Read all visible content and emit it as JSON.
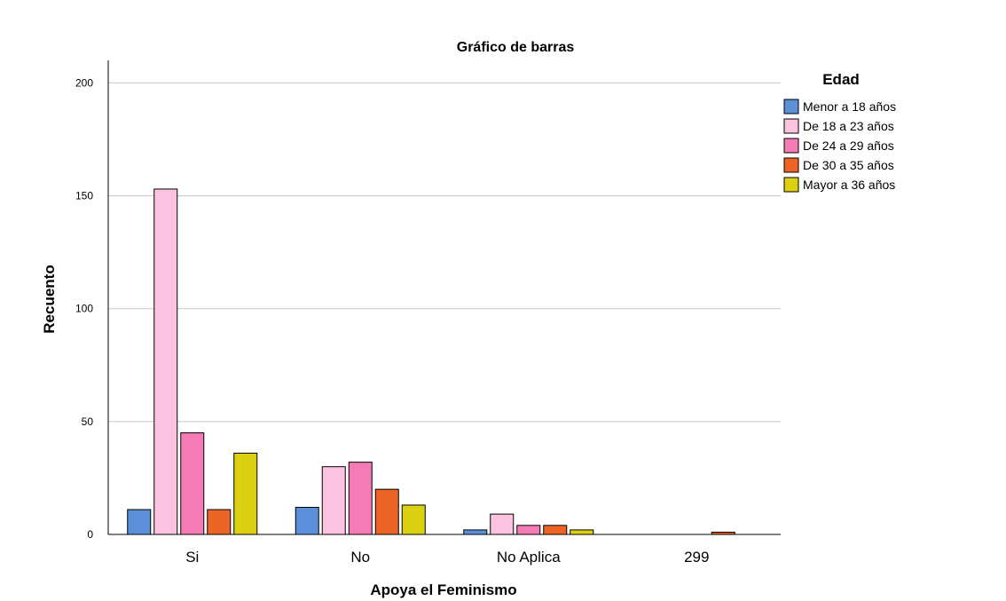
{
  "chart_data": {
    "type": "bar",
    "title": "Gráfico de barras",
    "xlabel": "Apoya el Feminismo",
    "ylabel": "Recuento",
    "categories": [
      "Si",
      "No",
      "No Aplica",
      "299"
    ],
    "ylim": [
      0,
      210
    ],
    "yticks": [
      0,
      50,
      100,
      150,
      200
    ],
    "grid": true,
    "legend": {
      "title": "Edad",
      "position": "top-right"
    },
    "series": [
      {
        "name": "Menor a 18 años",
        "color": "#5b8fd9",
        "values": [
          11,
          12,
          2,
          0
        ]
      },
      {
        "name": "De 18 a 23 años",
        "color": "#fbc3e0",
        "values": [
          153,
          30,
          9,
          0
        ]
      },
      {
        "name": "De 24 a 29 años",
        "color": "#f57bb6",
        "values": [
          45,
          32,
          4,
          0
        ]
      },
      {
        "name": "De 30 a 35 años",
        "color": "#ee6424",
        "values": [
          11,
          20,
          4,
          1
        ]
      },
      {
        "name": "Mayor a 36 años",
        "color": "#dcd012",
        "values": [
          36,
          13,
          2,
          0
        ]
      }
    ]
  }
}
